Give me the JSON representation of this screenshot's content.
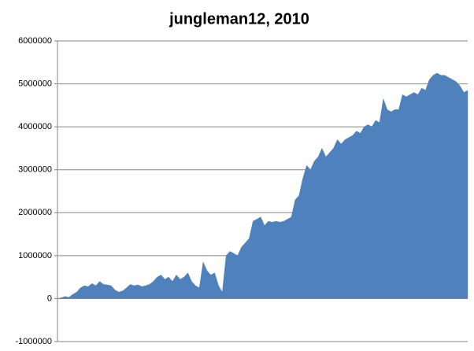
{
  "chart_data": {
    "type": "area",
    "title": "jungleman12, 2010",
    "color": "#4f81bd",
    "grid": true,
    "ylim": [
      -1000000,
      6000000
    ],
    "yticks": [
      -1000000,
      0,
      1000000,
      2000000,
      3000000,
      4000000,
      5000000,
      6000000
    ],
    "values": [
      0,
      20000,
      50000,
      30000,
      100000,
      150000,
      250000,
      300000,
      280000,
      350000,
      300000,
      400000,
      330000,
      320000,
      300000,
      200000,
      150000,
      180000,
      250000,
      330000,
      300000,
      320000,
      280000,
      300000,
      330000,
      400000,
      500000,
      550000,
      450000,
      500000,
      400000,
      550000,
      450000,
      500000,
      600000,
      400000,
      300000,
      250000,
      850000,
      650000,
      550000,
      600000,
      300000,
      150000,
      1000000,
      1100000,
      1050000,
      1000000,
      1200000,
      1300000,
      1400000,
      1800000,
      1850000,
      1900000,
      1700000,
      1800000,
      1780000,
      1800000,
      1780000,
      1800000,
      1850000,
      1900000,
      2300000,
      2400000,
      2800000,
      3100000,
      3000000,
      3200000,
      3300000,
      3500000,
      3300000,
      3400000,
      3500000,
      3700000,
      3600000,
      3700000,
      3750000,
      3800000,
      3900000,
      3850000,
      4000000,
      4050000,
      4000000,
      4150000,
      4100000,
      4650000,
      4400000,
      4350000,
      4400000,
      4400000,
      4750000,
      4700000,
      4750000,
      4800000,
      4750000,
      4900000,
      4850000,
      5100000,
      5200000,
      5250000,
      5200000,
      5200000,
      5150000,
      5100000,
      5050000,
      4950000,
      4800000,
      4850000
    ]
  }
}
